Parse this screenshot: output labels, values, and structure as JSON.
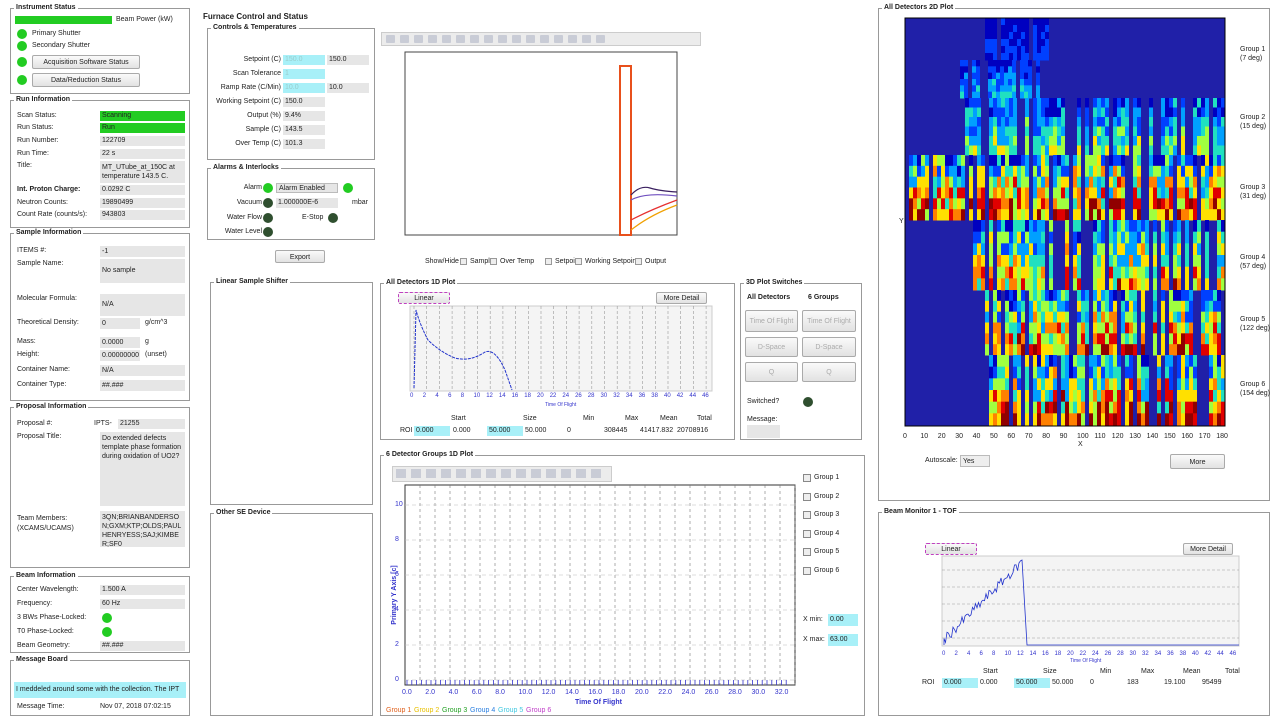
{
  "instrument_status": {
    "title": "Instrument Status",
    "beam_power": "Beam Power (kW)",
    "primary_shutter": "Primary Shutter",
    "secondary_shutter": "Secondary Shutter",
    "acquisition_button": "Acquisition Software Status",
    "reduction_button": "Data/Reduction Status"
  },
  "run_information": {
    "title": "Run Information",
    "rows": [
      {
        "label": "Scan Status:",
        "value": "Scanning"
      },
      {
        "label": "Run Status:",
        "value": "Run"
      },
      {
        "label": "Run Number:",
        "value": "122709"
      },
      {
        "label": "Run Time:",
        "value": "22 s"
      },
      {
        "label": "Title:",
        "value": "MT_UTube_at_150C at temperature 143.5 C."
      },
      {
        "label": "Int. Proton Charge:",
        "value": "0.0292 C"
      },
      {
        "label": "Neutron Counts:",
        "value": "19890499"
      },
      {
        "label": "Count Rate (counts/s):",
        "value": "943803"
      }
    ]
  },
  "sample_information": {
    "title": "Sample Information",
    "rows": [
      {
        "label": "ITEMS #:",
        "value": "-1"
      },
      {
        "label": "Sample Name:",
        "value": "No sample"
      },
      {
        "label": "Molecular Formula:",
        "value": "N/A"
      },
      {
        "label": "Theoretical Density:",
        "value": "0",
        "unit": "g/cm^3"
      },
      {
        "label": "Mass:",
        "value": "0.0000",
        "unit": "g"
      },
      {
        "label": "Height:",
        "value": "0.00000000",
        "unit": "(unset)"
      },
      {
        "label": "Container Name:",
        "value": "N/A"
      },
      {
        "label": "Container Type:",
        "value": "##.###"
      }
    ]
  },
  "proposal_information": {
    "title": "Proposal Information",
    "proposal_label": "Proposal #:",
    "proposal_prefix": "IPTS-",
    "proposal_number": "21255",
    "title_label": "Proposal Title:",
    "title_value": "Do extended defects template phase formation during oxidation of UO2?",
    "team_label": "Team Members: (XCAMS/UCAMS)",
    "team_value": "3QN;BRIANBANDERSON;GXM;KTP;OLDS;PAULHENRYESS;SAJ;KIMBER;SF0"
  },
  "beam_information": {
    "title": "Beam Information",
    "rows": [
      {
        "label": "Center Wavelength:",
        "value": "1.500 A"
      },
      {
        "label": "Frequency:",
        "value": "60 Hz"
      },
      {
        "label": "3 BWs Phase-Locked:"
      },
      {
        "label": "T0 Phase-Locked:"
      },
      {
        "label": "Beam Geometry:",
        "value": "##.###"
      }
    ]
  },
  "message_board": {
    "title": "Message Board",
    "message": "I meddeled around some with the collection. The IPT",
    "time_label": "Message Time:",
    "time_value": "Nov 07, 2018 07:02:15"
  },
  "furnace": {
    "title": "Furnace Control and Status",
    "controls": {
      "title": "Controls & Temperatures",
      "rows": [
        {
          "label": "Setpoint (C)",
          "input": "150.0",
          "value": "150.0"
        },
        {
          "label": "Scan Tolerance",
          "input": "1"
        },
        {
          "label": "Ramp Rate (C/Min)",
          "input": "10.0",
          "value": "10.0"
        },
        {
          "label": "Working Setpoint (C)",
          "value": "150.0"
        },
        {
          "label": "Output (%)",
          "value": "9.4%"
        },
        {
          "label": "Sample (C)",
          "value": "143.5"
        },
        {
          "label": "Over Temp (C)",
          "value": "101.3"
        }
      ]
    },
    "alarms": {
      "title": "Alarms & Interlocks",
      "alarm": "Alarm",
      "alarm_select": "Alarm Enabled",
      "vacuum": "Vacuum",
      "vacuum_value": "1.000000E-6",
      "vacuum_unit": "mbar",
      "water_flow": "Water Flow",
      "estop": "E-Stop",
      "water_level": "Water Level"
    },
    "export": "Export",
    "show_hide": "Show/Hide",
    "checkboxes": [
      "Sample",
      "Over Temp",
      "Setpoint",
      "Working Setpoint",
      "Output"
    ]
  },
  "linear_sample_shifter": {
    "title": "Linear Sample Shifter"
  },
  "other_se_device": {
    "title": "Other SE Device"
  },
  "all_detectors_1d": {
    "title": "All Detectors 1D Plot",
    "scale_button": "Linear",
    "more_button": "More Detail",
    "x_label": "Time Of Flight",
    "x_ticks": [
      "0",
      "2",
      "4",
      "6",
      "8",
      "10",
      "12",
      "14",
      "16",
      "18",
      "20",
      "22",
      "24",
      "26",
      "28",
      "30",
      "32",
      "34",
      "36",
      "38",
      "40",
      "42",
      "44",
      "46"
    ],
    "roi_headers": [
      "Start",
      "Size",
      "Min",
      "Max",
      "Mean",
      "Total"
    ],
    "roi_label": "ROI",
    "roi_values": [
      "0.000",
      "0.000",
      "50.000",
      "50.000",
      "0",
      "308445",
      "41417.832",
      "20708916"
    ]
  },
  "plot_switches": {
    "title": "3D Plot Switches",
    "col_all": "All Detectors",
    "col_groups": "6 Groups",
    "buttons": [
      "Time Of Flight",
      "D-Space",
      "Q"
    ],
    "switched": "Switched?",
    "message": "Message:"
  },
  "groups_1d": {
    "title": "6 Detector Groups 1D Plot",
    "y_label": "Primary Y Axis [c]",
    "x_label": "Time Of Flight",
    "y_ticks": [
      "10",
      "8",
      "6",
      "4",
      "2",
      "0"
    ],
    "x_ticks": [
      "0.0",
      "2.0",
      "4.0",
      "6.0",
      "8.0",
      "10.0",
      "12.0",
      "14.0",
      "16.0",
      "18.0",
      "20.0",
      "22.0",
      "24.0",
      "26.0",
      "28.0",
      "30.0",
      "32.0"
    ],
    "groups": [
      {
        "name": "Group 1",
        "color": "#e0601c"
      },
      {
        "name": "Group 2",
        "color": "#e8c000"
      },
      {
        "name": "Group 3",
        "color": "#22a022"
      },
      {
        "name": "Group 4",
        "color": "#2a7fe0"
      },
      {
        "name": "Group 5",
        "color": "#40c8e0"
      },
      {
        "name": "Group 6",
        "color": "#c040c8"
      }
    ],
    "xmin_label": "X min:",
    "xmin": "0.00",
    "xmax_label": "X max:",
    "xmax": "63.00"
  },
  "all_detectors_2d": {
    "title": "All Detectors 2D Plot",
    "x_label": "X",
    "y_label": "Y",
    "x_ticks": [
      "0",
      "10",
      "20",
      "30",
      "40",
      "50",
      "60",
      "70",
      "80",
      "90",
      "100",
      "110",
      "120",
      "130",
      "140",
      "150",
      "160",
      "170",
      "180"
    ],
    "groups": [
      {
        "name": "Group 1",
        "angle": "(7 deg)"
      },
      {
        "name": "Group 2",
        "angle": "(15 deg)"
      },
      {
        "name": "Group 3",
        "angle": "(31 deg)"
      },
      {
        "name": "Group 4",
        "angle": "(57 deg)"
      },
      {
        "name": "Group 5",
        "angle": "(122 deg)"
      },
      {
        "name": "Group 6",
        "angle": "(154 deg)"
      }
    ],
    "autoscale_label": "Autoscale:",
    "autoscale_value": "Yes",
    "more_button": "More"
  },
  "beam_monitor": {
    "title": "Beam Monitor 1 - TOF",
    "scale_button": "Linear",
    "more_button": "More Detail",
    "x_label": "Time Of Flight",
    "x_ticks": [
      "0",
      "2",
      "4",
      "6",
      "8",
      "10",
      "12",
      "14",
      "16",
      "18",
      "20",
      "22",
      "24",
      "26",
      "28",
      "30",
      "32",
      "34",
      "36",
      "38",
      "40",
      "42",
      "44",
      "46"
    ],
    "roi_headers": [
      "Start",
      "Size",
      "Min",
      "Max",
      "Mean",
      "Total"
    ],
    "roi_label": "ROI",
    "roi_values": [
      "0.000",
      "0.000",
      "50.000",
      "50.000",
      "0",
      "183",
      "19.100",
      "95499"
    ]
  }
}
